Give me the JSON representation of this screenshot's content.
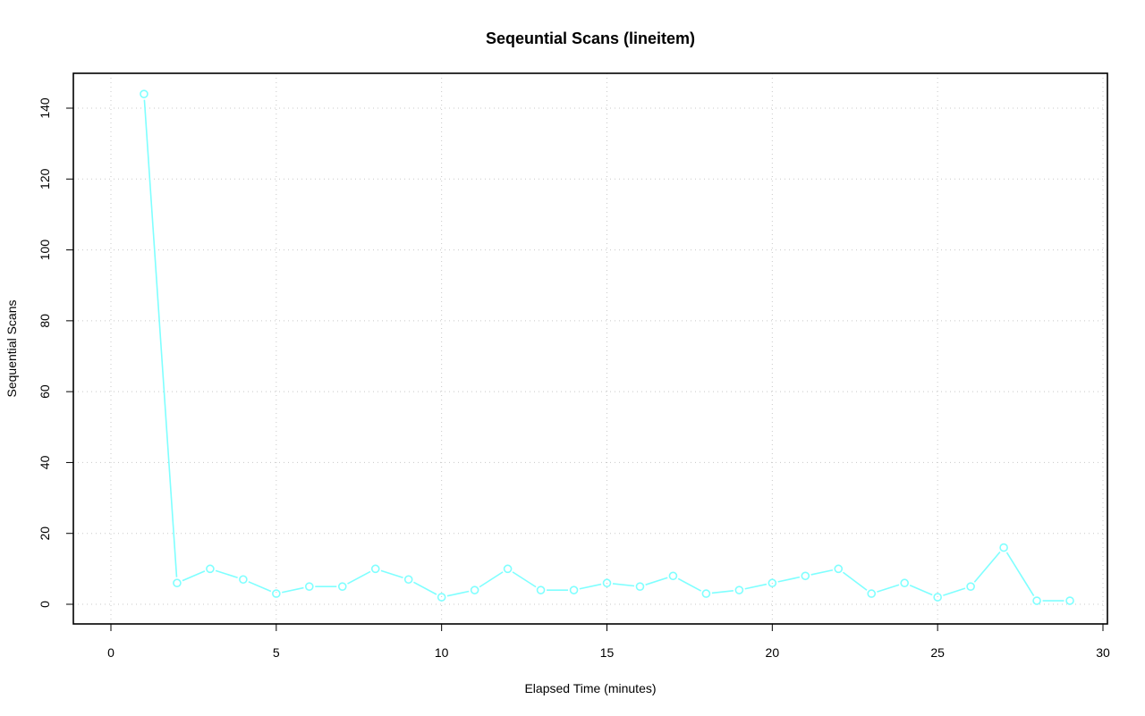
{
  "chart_data": {
    "type": "line",
    "title": "Seqeuntial Scans (lineitem)",
    "xlabel": "Elapsed Time (minutes)",
    "ylabel": "Sequential Scans",
    "xlim": [
      0,
      30
    ],
    "ylim": [
      0,
      150
    ],
    "xticks": [
      0,
      5,
      10,
      15,
      20,
      25,
      30
    ],
    "yticks": [
      0,
      20,
      40,
      60,
      80,
      100,
      120,
      140
    ],
    "grid": true,
    "legend": "none",
    "color": "#7fffff",
    "series": [
      {
        "x": [
          1,
          2,
          3,
          4,
          5,
          6,
          7,
          8,
          9,
          10,
          11,
          12,
          13,
          14,
          15,
          16,
          17,
          18,
          19,
          20,
          21,
          22,
          23,
          24,
          25,
          26,
          27,
          28,
          29
        ],
        "values": [
          144,
          6,
          10,
          7,
          3,
          5,
          5,
          10,
          7,
          2,
          4,
          10,
          4,
          4,
          6,
          5,
          8,
          3,
          4,
          6,
          8,
          10,
          3,
          6,
          2,
          5,
          16,
          1,
          1
        ]
      }
    ]
  }
}
